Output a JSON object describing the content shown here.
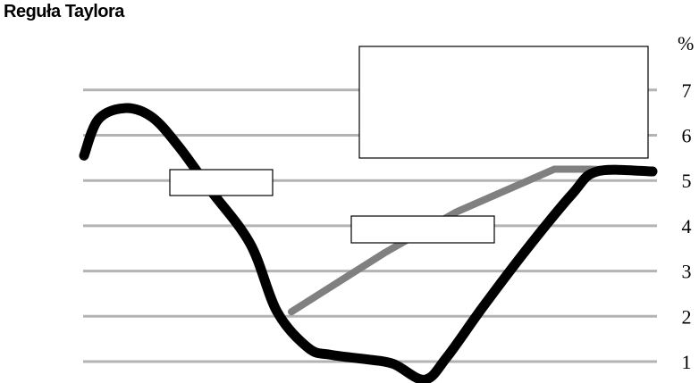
{
  "chart_data": {
    "type": "line",
    "title": "Reguła Taylora",
    "unit": "%",
    "ylim": [
      0.9,
      8.0
    ],
    "yticks": [
      1,
      2,
      3,
      4,
      5,
      6,
      7
    ],
    "y_tick_labels": [
      "1",
      "2",
      "3",
      "4",
      "5",
      "6",
      "7"
    ],
    "grid": true,
    "legend": "none",
    "series": [
      {
        "color": "#000000",
        "values": [
          5.55,
          6.35,
          6.6,
          6.4,
          5.75,
          4.8,
          3.6,
          2.1,
          1.3,
          1.15,
          1.05,
          0.95,
          0.6,
          1.1,
          2.2,
          3.5,
          4.7,
          5.2,
          5.2
        ]
      },
      {
        "color": "#808080",
        "values": [
          2.1,
          3.4,
          4.3,
          5.25,
          5.25,
          5.2
        ]
      }
    ],
    "annotation_boxes": [
      {
        "text": ""
      },
      {
        "text": ""
      },
      {
        "text": ""
      }
    ]
  }
}
